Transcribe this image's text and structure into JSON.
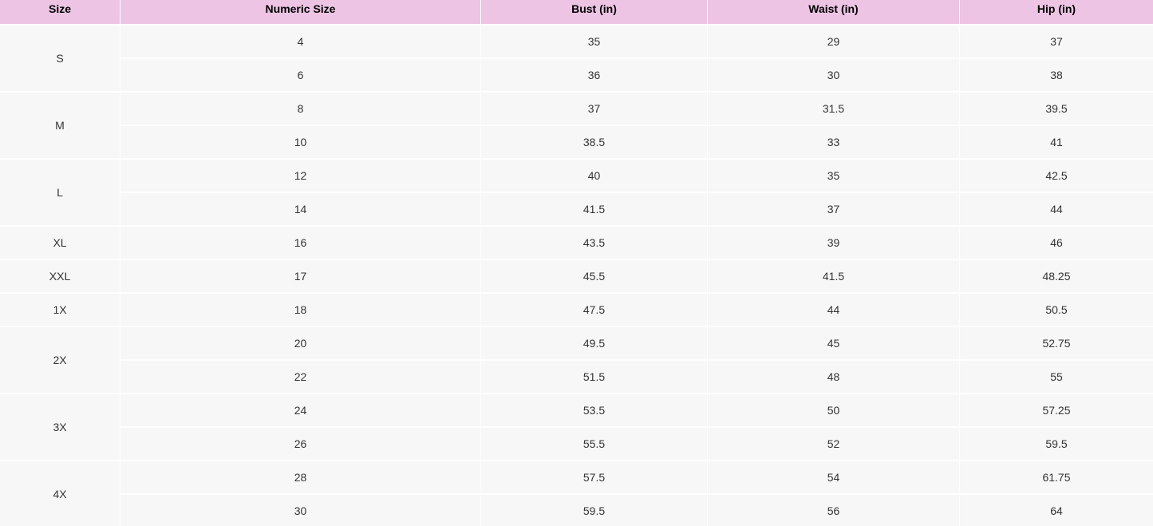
{
  "table": {
    "header": [
      "Size",
      "Numeric Size",
      "Bust (in)",
      "Waist (in)",
      "Hip (in)"
    ],
    "groups": [
      {
        "size": "S",
        "rows": [
          [
            4,
            35,
            29,
            37
          ],
          [
            6,
            36,
            30,
            38
          ]
        ]
      },
      {
        "size": "M",
        "rows": [
          [
            8,
            37,
            31.5,
            39.5
          ],
          [
            10,
            38.5,
            33,
            41
          ]
        ]
      },
      {
        "size": "L",
        "rows": [
          [
            12,
            40,
            35,
            42.5
          ],
          [
            14,
            41.5,
            37,
            44
          ]
        ]
      },
      {
        "size": "XL",
        "rows": [
          [
            16,
            43.5,
            39,
            46
          ]
        ]
      },
      {
        "size": "XXL",
        "rows": [
          [
            17,
            45.5,
            41.5,
            48.25
          ]
        ]
      },
      {
        "size": "1X",
        "rows": [
          [
            18,
            47.5,
            44,
            50.5
          ]
        ]
      },
      {
        "size": "2X",
        "rows": [
          [
            20,
            49.5,
            45,
            52.75
          ],
          [
            22,
            51.5,
            48,
            55
          ]
        ]
      },
      {
        "size": "3X",
        "rows": [
          [
            24,
            53.5,
            50,
            57.25
          ],
          [
            26,
            55.5,
            52,
            59.5
          ]
        ]
      },
      {
        "size": "4X",
        "rows": [
          [
            28,
            57.5,
            54,
            61.75
          ],
          [
            30,
            59.5,
            56,
            64
          ]
        ]
      }
    ]
  }
}
